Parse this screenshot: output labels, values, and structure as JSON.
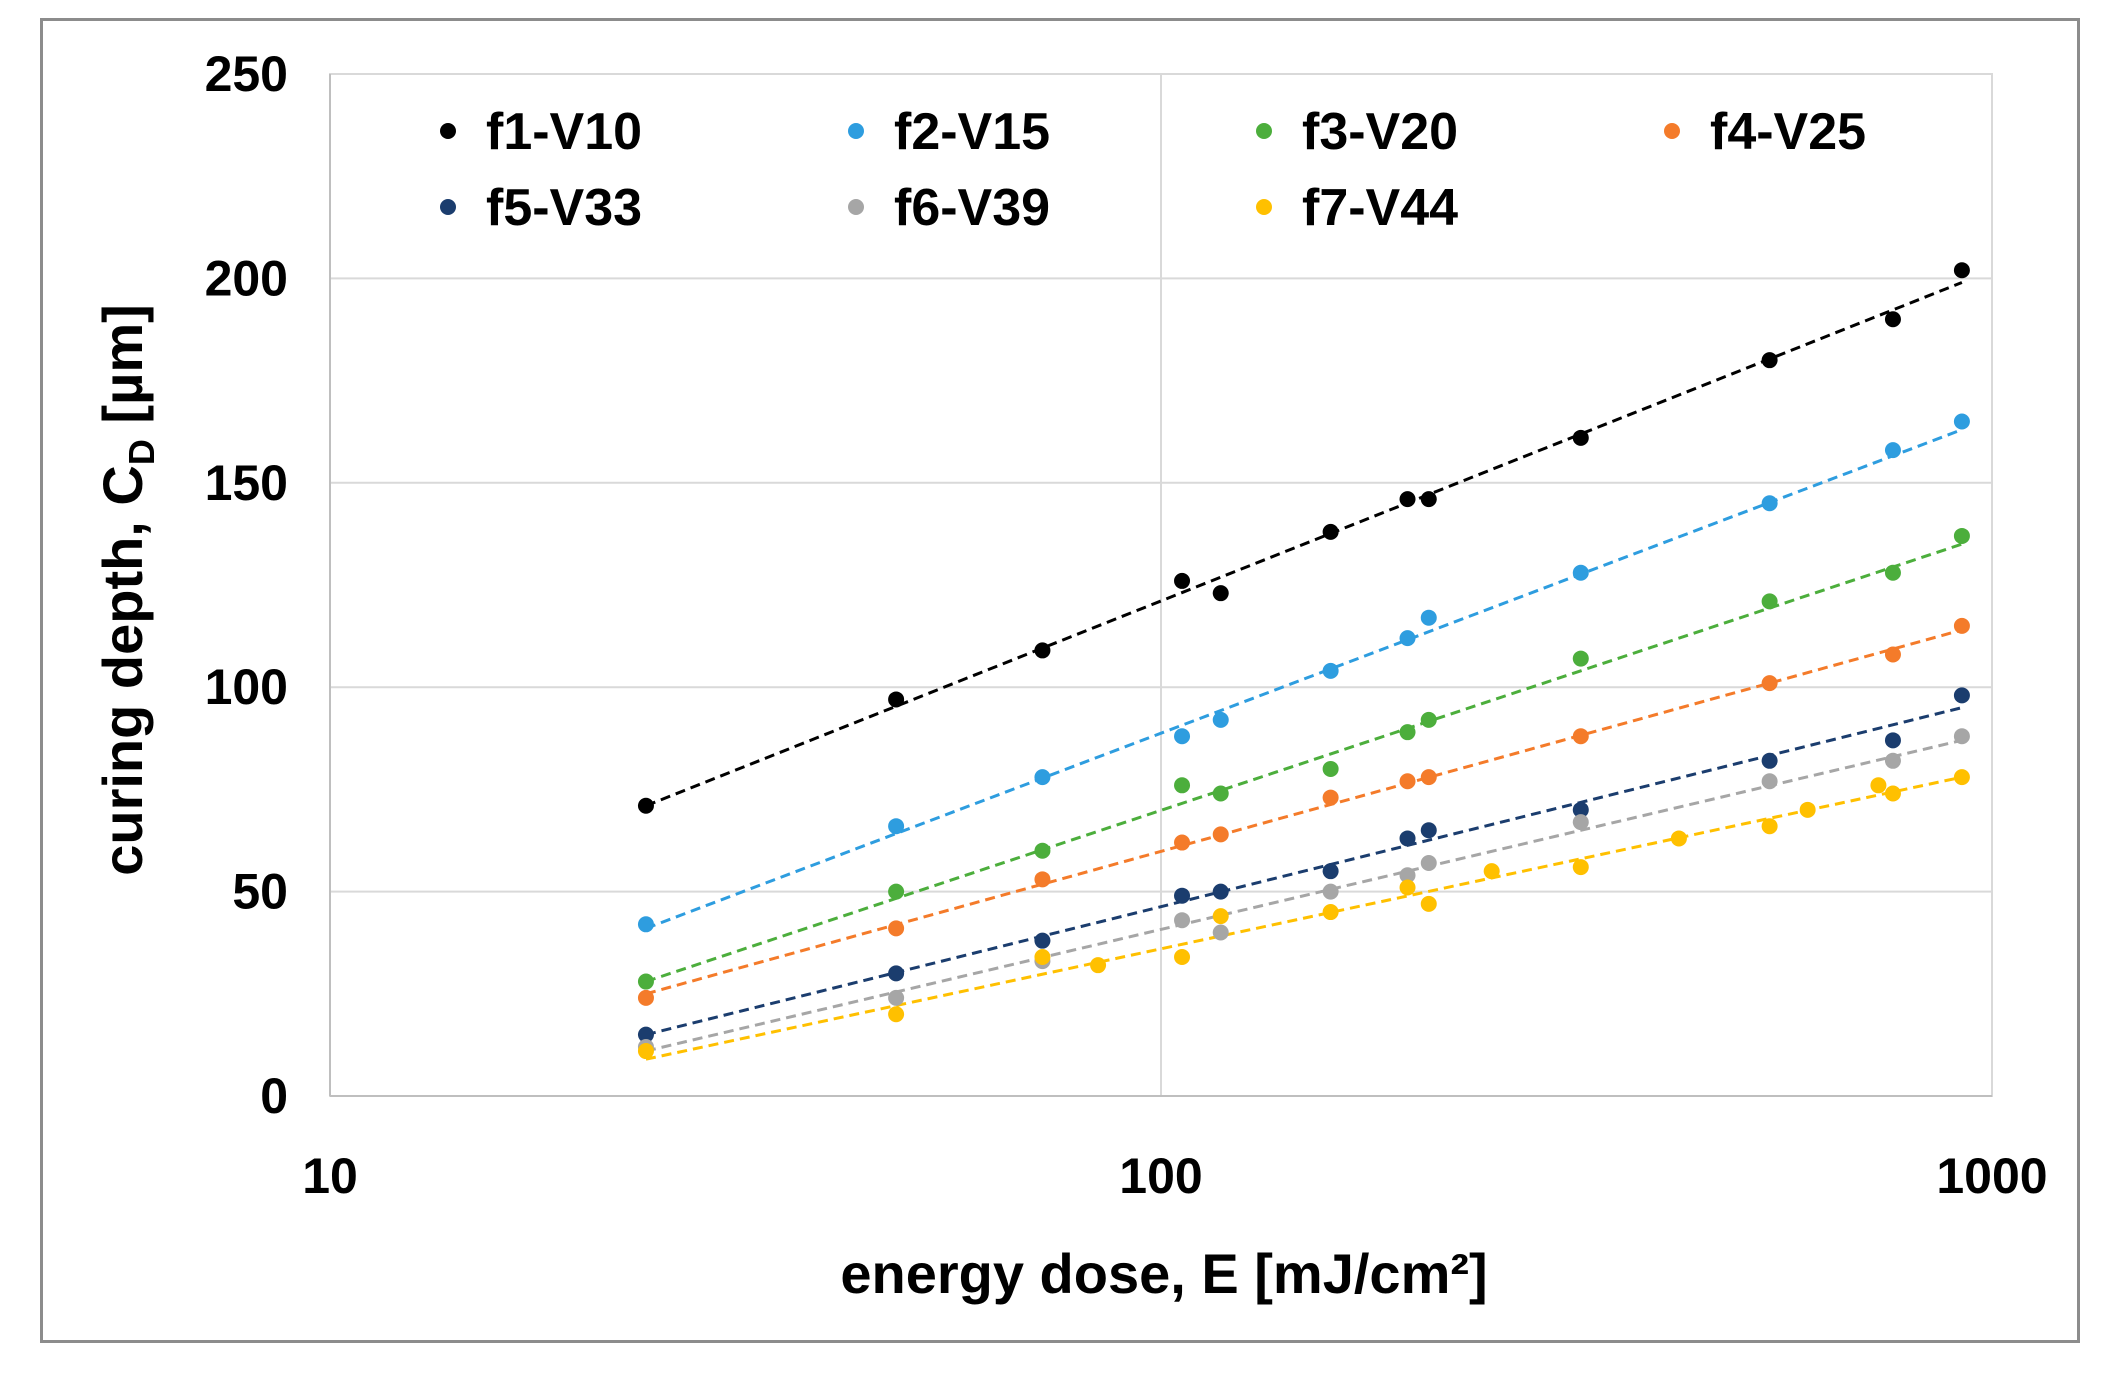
{
  "chart_data": {
    "type": "scatter",
    "xscale": "log",
    "xlim": [
      10,
      1000
    ],
    "ylim": [
      0,
      250
    ],
    "xticks": [
      "10",
      "100",
      "1000"
    ],
    "yticks": [
      "0",
      "50",
      "100",
      "150",
      "200",
      "250"
    ],
    "xlabel": "energy dose, E [mJ/cm²]",
    "ylabel_main": "curing depth, C",
    "ylabel_sub": "D",
    "ylabel_end": " [µm]",
    "grid": true,
    "legend_position": "top",
    "trendlines": "logarithmic, dashed",
    "series": [
      {
        "name": "f1-V10",
        "color": "#000000",
        "x": [
          24,
          48,
          72,
          106,
          118,
          160,
          198,
          210,
          320,
          540,
          760,
          920
        ],
        "y": [
          71,
          97,
          109,
          126,
          123,
          138,
          146,
          146,
          161,
          180,
          190,
          202
        ],
        "fit_x": [
          24,
          920
        ],
        "fit_y": [
          71,
          199
        ]
      },
      {
        "name": "f2-V15",
        "color": "#2e9ddf",
        "x": [
          24,
          48,
          72,
          106,
          118,
          160,
          198,
          210,
          320,
          540,
          760,
          920
        ],
        "y": [
          42,
          66,
          78,
          88,
          92,
          104,
          112,
          117,
          128,
          145,
          158,
          165
        ],
        "fit_x": [
          24,
          920
        ],
        "fit_y": [
          41,
          163
        ]
      },
      {
        "name": "f3-V20",
        "color": "#4cae3c",
        "x": [
          24,
          48,
          72,
          106,
          118,
          160,
          198,
          210,
          320,
          540,
          760,
          920
        ],
        "y": [
          28,
          50,
          60,
          76,
          74,
          80,
          89,
          92,
          107,
          121,
          128,
          137
        ],
        "fit_x": [
          24,
          920
        ],
        "fit_y": [
          28,
          135
        ]
      },
      {
        "name": "f4-V25",
        "color": "#f47b2a",
        "x": [
          24,
          48,
          72,
          106,
          118,
          160,
          198,
          210,
          320,
          540,
          760,
          920
        ],
        "y": [
          24,
          41,
          53,
          62,
          64,
          73,
          77,
          78,
          88,
          101,
          108,
          115
        ],
        "fit_x": [
          24,
          920
        ],
        "fit_y": [
          25,
          114
        ]
      },
      {
        "name": "f5-V33",
        "color": "#1b3d6e",
        "x": [
          24,
          48,
          72,
          106,
          118,
          160,
          198,
          210,
          320,
          540,
          760,
          920
        ],
        "y": [
          15,
          30,
          38,
          49,
          50,
          55,
          63,
          65,
          70,
          82,
          87,
          98
        ],
        "fit_x": [
          24,
          920
        ],
        "fit_y": [
          15,
          95
        ]
      },
      {
        "name": "f6-V39",
        "color": "#a6a6a6",
        "x": [
          24,
          48,
          72,
          106,
          118,
          160,
          198,
          210,
          320,
          540,
          760,
          920
        ],
        "y": [
          12,
          24,
          33,
          43,
          40,
          50,
          54,
          57,
          67,
          77,
          82,
          88
        ],
        "fit_x": [
          24,
          920
        ],
        "fit_y": [
          11,
          87
        ]
      },
      {
        "name": "f7-V44",
        "color": "#ffc000",
        "x": [
          24,
          48,
          72,
          84,
          106,
          118,
          160,
          198,
          210,
          250,
          320,
          420,
          540,
          600,
          730,
          760,
          920
        ],
        "y": [
          11,
          20,
          34,
          32,
          34,
          44,
          45,
          51,
          47,
          55,
          56,
          63,
          66,
          70,
          76,
          74,
          78
        ],
        "fit_x": [
          24,
          920
        ],
        "fit_y": [
          9,
          78
        ]
      }
    ]
  }
}
